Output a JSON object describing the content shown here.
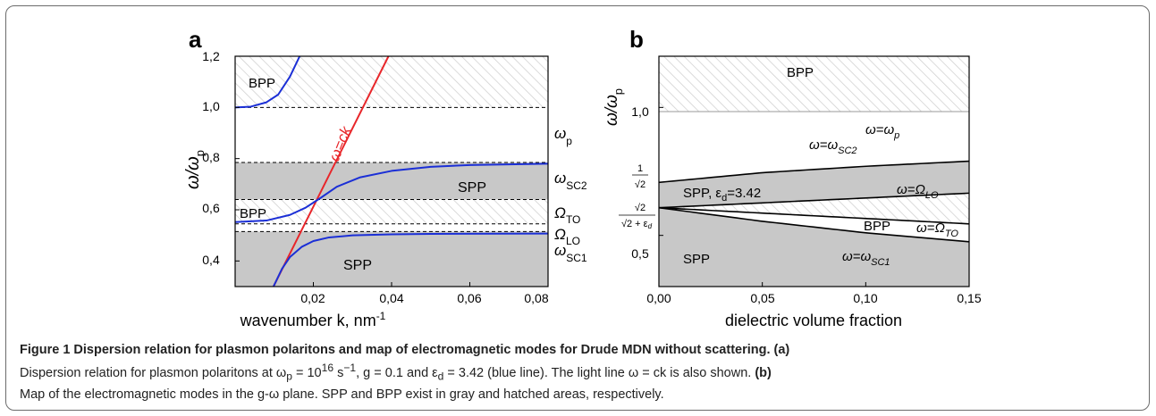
{
  "panel_a": {
    "letter": "a",
    "xlabel": "wavenumber k, nm",
    "xlabel_sup": "-1",
    "ylabel": "ω/ω",
    "ylabel_sub": "p",
    "xticks": [
      "0,02",
      "0,04",
      "0,06",
      "0,08"
    ],
    "yticks": [
      "0,4",
      "0,6",
      "0,8",
      "1,0",
      "1,2"
    ],
    "region_labels": {
      "bpp_top": "BPP",
      "bpp_mid": "BPP",
      "spp_mid": "SPP",
      "spp_low": "SPP"
    },
    "light_line_label": "ω=ck",
    "right_labels": [
      {
        "base": "ω",
        "sub": "p"
      },
      {
        "base": "ω",
        "sub": "SC2"
      },
      {
        "base": "Ω",
        "sub": "TO"
      },
      {
        "base": "Ω",
        "sub": "LO"
      },
      {
        "base": "ω",
        "sub": "SC1"
      }
    ]
  },
  "panel_b": {
    "letter": "b",
    "xlabel": "dielectric volume fraction",
    "ylabel": "ω/ω",
    "ylabel_sub": "p",
    "xticks": [
      "0,00",
      "0,05",
      "0,10",
      "0,15"
    ],
    "yticks": [
      "0,5",
      "1,0"
    ],
    "ytick_frac1_num": "1",
    "ytick_frac1_den": "√2",
    "ytick_frac2_num": "√2",
    "ytick_frac2_den": "√2 + ε",
    "ytick_frac2_den_sub": "d",
    "region_labels": {
      "bpp_top": "BPP",
      "spp_mid": "SPP, ε",
      "spp_mid_sub": "d",
      "spp_mid_val": "=3.42",
      "bpp_mid": "BPP",
      "spp_low": "SPP"
    },
    "curve_labels": [
      {
        "base": "ω=ω",
        "sub": "p"
      },
      {
        "base": "ω=ω",
        "sub": "SC2"
      },
      {
        "base": "ω=Ω",
        "sub": "LO"
      },
      {
        "base": "ω=Ω",
        "sub": "TO"
      },
      {
        "base": "ω=ω",
        "sub": "SC1"
      }
    ]
  },
  "caption": {
    "title": "Figure 1 Dispersion relation for plasmon polaritons and map of electromagnetic modes for Drude MDN without scattering.",
    "a_tag": "(a)",
    "a_text": "Dispersion relation for plasmon polaritons at ω",
    "a_sub_p": "p",
    "a_text2": " = 10",
    "a_sup16": "16",
    "a_text3": " s",
    "a_sup_neg": "−1",
    "a_text4": ", g = 0.1 and ε",
    "a_sub_d": "d",
    "a_text5": " = 3.42 (blue line). The light line ω = ck is also shown.",
    "b_tag": "(b)",
    "b_text": "Map of the electromagnetic modes in the g-ω plane. SPP and BPP exist in gray and hatched areas, respectively."
  },
  "chart_data": [
    {
      "type": "line",
      "panel": "a",
      "xlabel": "wavenumber k, nm-1",
      "ylabel": "ω/ωp",
      "xlim": [
        0,
        0.08
      ],
      "ylim": [
        0.3,
        1.2
      ],
      "xticks": [
        0.02,
        0.04,
        0.06,
        0.08
      ],
      "yticks": [
        0.4,
        0.6,
        0.8,
        1.0,
        1.2
      ],
      "dashed_levels": [
        1.0,
        0.785,
        0.64,
        0.545,
        0.515
      ],
      "gray_bands": [
        [
          0.3,
          0.515
        ],
        [
          0.64,
          0.785
        ]
      ],
      "hatched_bands": [
        [
          0.545,
          0.64
        ],
        [
          1.0,
          1.2
        ]
      ],
      "series": [
        {
          "name": "light line",
          "color": "#e8262a",
          "x": [
            0.0098,
            0.0392
          ],
          "y": [
            0.3,
            1.2
          ]
        },
        {
          "name": "BPP upper",
          "color": "#1b2fd6",
          "x": [
            0.0,
            0.004,
            0.008,
            0.011,
            0.014,
            0.0165
          ],
          "y": [
            1.0,
            1.003,
            1.02,
            1.05,
            1.12,
            1.2
          ]
        },
        {
          "name": "SPP upper",
          "color": "#1b2fd6",
          "x": [
            0.0,
            0.008,
            0.014,
            0.018,
            0.022,
            0.026,
            0.032,
            0.04,
            0.05,
            0.06,
            0.08
          ],
          "y": [
            0.552,
            0.558,
            0.58,
            0.608,
            0.648,
            0.69,
            0.727,
            0.752,
            0.768,
            0.775,
            0.78
          ]
        },
        {
          "name": "SPP lower",
          "color": "#1b2fd6",
          "x": [
            0.0098,
            0.012,
            0.014,
            0.017,
            0.02,
            0.024,
            0.03,
            0.04,
            0.05,
            0.08
          ],
          "y": [
            0.3,
            0.37,
            0.415,
            0.455,
            0.478,
            0.492,
            0.5,
            0.504,
            0.506,
            0.507
          ]
        }
      ]
    },
    {
      "type": "area",
      "panel": "b",
      "xlabel": "dielectric volume fraction",
      "ylabel": "ω/ωp",
      "xlim": [
        0,
        0.15
      ],
      "ylim": [
        0.3,
        1.2
      ],
      "xticks": [
        0.0,
        0.05,
        0.1,
        0.15
      ],
      "yticks": [
        0.5,
        1.0
      ],
      "series": [
        {
          "name": "ω=ωp",
          "x": [
            0,
            0.15
          ],
          "y": [
            1.0,
            1.0
          ]
        },
        {
          "name": "ω=ωSC2",
          "x": [
            0,
            0.05,
            0.1,
            0.15
          ],
          "y": [
            0.707,
            0.745,
            0.77,
            0.79
          ]
        },
        {
          "name": "ω=ΩLO",
          "x": [
            0,
            0.15
          ],
          "y": [
            0.608,
            0.665
          ]
        },
        {
          "name": "ω=ΩTO",
          "x": [
            0,
            0.15
          ],
          "y": [
            0.608,
            0.545
          ]
        },
        {
          "name": "ω=ωSC1",
          "x": [
            0,
            0.05,
            0.1,
            0.15
          ],
          "y": [
            0.608,
            0.555,
            0.51,
            0.475
          ]
        }
      ]
    }
  ]
}
